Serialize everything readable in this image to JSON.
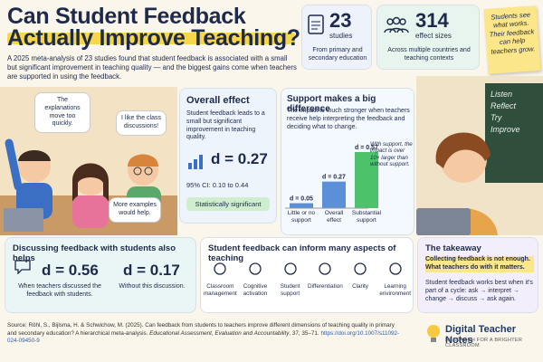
{
  "header": {
    "title_line1": "Can Student Feedback",
    "title_line2": "Actually Improve Teaching?",
    "intro": "A 2025 meta-analysis of 23 studies found that student feedback is associated with a small but significant improvement in teaching quality — and the biggest gains come when teachers are supported in using the feedback."
  },
  "stats": [
    {
      "number": "23",
      "label": "studies",
      "note": "From primary and secondary education"
    },
    {
      "number": "314",
      "label": "effect sizes",
      "note": "Across multiple countries and teaching contexts"
    }
  ],
  "sticky_note": "Students see what works. Their feedback can help teachers grow.",
  "speech_bubbles": [
    "The explanations move too quickly.",
    "I like the class discussions!",
    "More examples would help."
  ],
  "overall_effect": {
    "title": "Overall effect",
    "text": "Student feedback leads to a small but significant improvement in teaching quality.",
    "value": "d = 0.27",
    "ci": "95% CI: 0.10 to 0.44",
    "badge": "Statistically significant"
  },
  "support": {
    "title": "Support makes a big difference",
    "text": "The impact is much stronger when teachers receive help interpreting the feedback and deciding what to change.",
    "bars": [
      {
        "category": "Little or no support",
        "value": 0.05,
        "label": "d = 0.05",
        "color": "#5b8fd8"
      },
      {
        "category": "Overall effect",
        "value": 0.27,
        "label": "d = 0.27",
        "color": "#5b8fd8"
      },
      {
        "category": "Substantial support",
        "value": 0.57,
        "label": "d = 0.57",
        "color": "#4cc36a"
      }
    ],
    "annotation": "With support, the impact is over 10× larger than without support."
  },
  "chalkboard": [
    "Listen",
    "Reflect",
    "Try",
    "Improve"
  ],
  "discussion": {
    "title": "Discussing feedback with students also helps",
    "items": [
      {
        "value": "d = 0.56",
        "text": "When teachers discussed the feedback with students."
      },
      {
        "value": "d = 0.17",
        "text": "Without this discussion."
      }
    ]
  },
  "aspects": {
    "title": "Student feedback can inform many aspects of teaching",
    "items": [
      "Classroom management",
      "Cognitive activation",
      "Student support",
      "Differentiation",
      "Clarity",
      "Learning environment"
    ]
  },
  "takeaway": {
    "title": "The takeaway",
    "highlight": "Collecting feedback is not enough. What teachers do with it matters.",
    "text": "Student feedback works best when it's part of a cycle: ask → interpret → change → discuss → ask again."
  },
  "source": {
    "citation": "Source: Röhl, S., Bijlsma, H. & Schwichow, M. (2025). Can feedback from students to teachers improve different dimensions of teaching quality in primary and secondary education? A hierarchical meta-analysis.",
    "journal": "Educational Assessment, Evaluation and Accountability",
    "details": ", 37, 35–71.",
    "doi": "https://doi.org/10.1007/s11092-024-09450-9"
  },
  "brand": {
    "name": "Digital Teacher Notes",
    "tagline": "RESEARCH FOR A BRIGHTER CLASSROOM"
  }
}
